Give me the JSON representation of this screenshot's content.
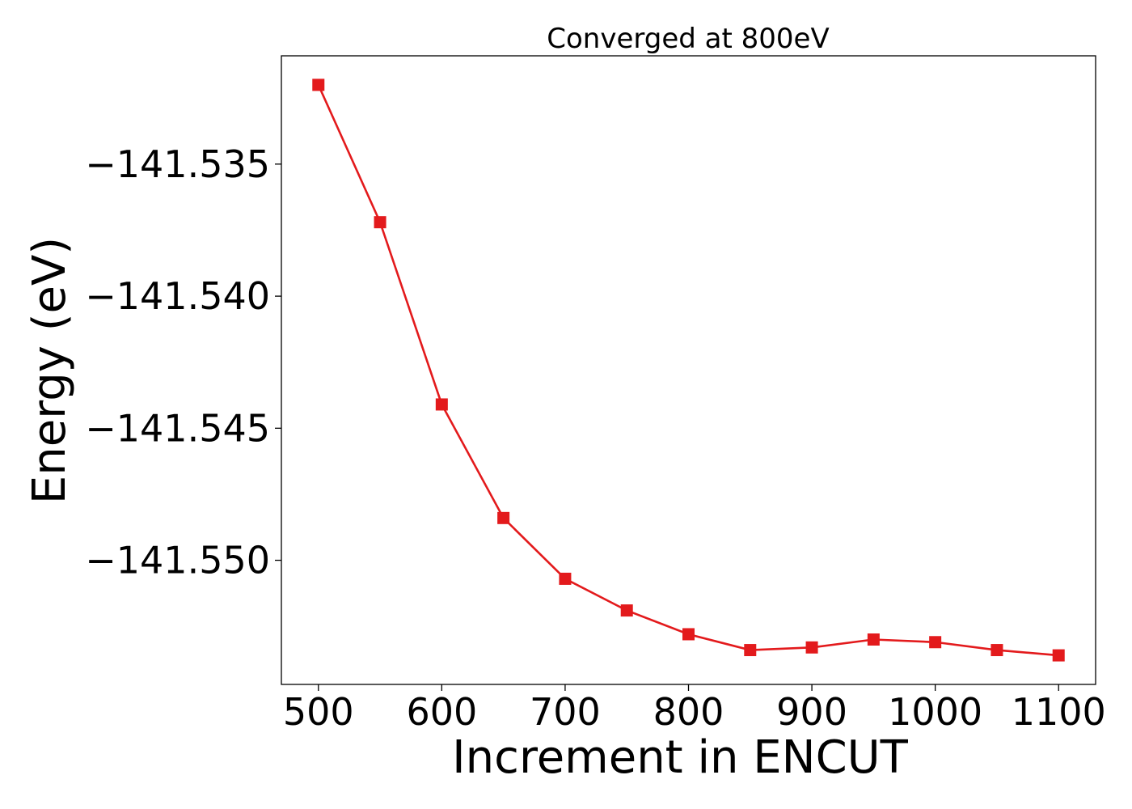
{
  "chart_data": {
    "type": "line",
    "title": "Converged at 800eV",
    "xlabel": "Increment in ENCUT",
    "ylabel": "Energy (eV)",
    "xlim": [
      470,
      1130
    ],
    "ylim": [
      -141.5547,
      -141.5309
    ],
    "x_ticks": [
      500,
      600,
      700,
      800,
      900,
      1000,
      1100
    ],
    "x_tick_labels": [
      "500",
      "600",
      "700",
      "800",
      "900",
      "1000",
      "1100"
    ],
    "y_ticks": [
      -141.535,
      -141.54,
      -141.545,
      -141.55
    ],
    "y_tick_labels": [
      "−141.535",
      "−141.540",
      "−141.545",
      "−141.550"
    ],
    "grid": false,
    "legend": false,
    "series": [
      {
        "color": "#e31a1c",
        "marker": "square",
        "x": [
          500,
          550,
          600,
          650,
          700,
          750,
          800,
          850,
          900,
          950,
          1000,
          1050,
          1100
        ],
        "y": [
          -141.532,
          -141.5372,
          -141.5441,
          -141.5484,
          -141.5507,
          -141.5519,
          -141.5528,
          -141.5534,
          -141.5533,
          -141.553,
          -141.5531,
          -141.5534,
          -141.5536
        ]
      }
    ]
  }
}
